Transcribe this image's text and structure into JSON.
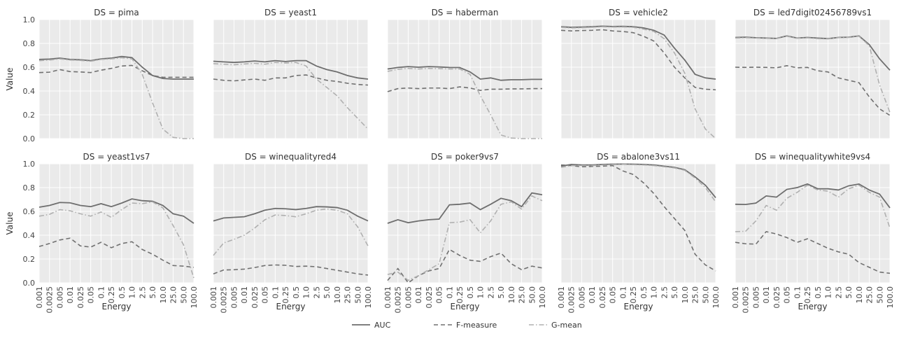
{
  "chart_data": {
    "type": "line",
    "layout": "facet-grid",
    "facet_prefix": "DS = ",
    "xlabel": "Energy",
    "ylabel": "Value",
    "ylim": [
      0,
      1
    ],
    "yticks": [
      "0.0",
      "0.2",
      "0.4",
      "0.6",
      "0.8",
      "1.0"
    ],
    "categories": [
      "0.001",
      "0.0025",
      "0.005",
      "0.01",
      "0.025",
      "0.05",
      "0.1",
      "0.25",
      "0.5",
      "1.0",
      "2.5",
      "5.0",
      "10.0",
      "25.0",
      "50.0",
      "100.0"
    ],
    "grid": true,
    "legend_position": "bottom-center",
    "legend": [
      {
        "name": "AUC",
        "style": "solid",
        "color": "#6e6e6e"
      },
      {
        "name": "F-measure",
        "style": "dashed",
        "color": "#707070"
      },
      {
        "name": "G-mean",
        "style": "dashdot",
        "color": "#b0b0b0"
      }
    ],
    "facets": [
      {
        "name": "pima",
        "series": [
          {
            "name": "AUC",
            "values": [
              0.665,
              0.668,
              0.676,
              0.665,
              0.662,
              0.655,
              0.67,
              0.676,
              0.69,
              0.68,
              0.6,
              0.53,
              0.505,
              0.5,
              0.5,
              0.5
            ]
          },
          {
            "name": "F-measure",
            "values": [
              0.555,
              0.558,
              0.58,
              0.563,
              0.56,
              0.555,
              0.575,
              0.59,
              0.61,
              0.615,
              0.57,
              0.53,
              0.515,
              0.515,
              0.515,
              0.515
            ]
          },
          {
            "name": "G-mean",
            "values": [
              0.655,
              0.66,
              0.67,
              0.66,
              0.657,
              0.65,
              0.665,
              0.67,
              0.68,
              0.67,
              0.54,
              0.3,
              0.08,
              0.01,
              0.0,
              0.0
            ]
          }
        ]
      },
      {
        "name": "yeast1",
        "series": [
          {
            "name": "AUC",
            "values": [
              0.65,
              0.645,
              0.64,
              0.645,
              0.652,
              0.645,
              0.655,
              0.648,
              0.655,
              0.655,
              0.61,
              0.58,
              0.56,
              0.53,
              0.51,
              0.5
            ]
          },
          {
            "name": "F-measure",
            "values": [
              0.5,
              0.49,
              0.485,
              0.493,
              0.5,
              0.49,
              0.51,
              0.51,
              0.53,
              0.535,
              0.51,
              0.49,
              0.48,
              0.465,
              0.455,
              0.45
            ]
          },
          {
            "name": "G-mean",
            "values": [
              0.63,
              0.625,
              0.62,
              0.627,
              0.633,
              0.625,
              0.64,
              0.635,
              0.64,
              0.61,
              0.5,
              0.43,
              0.36,
              0.26,
              0.17,
              0.08
            ]
          }
        ]
      },
      {
        "name": "haberman",
        "series": [
          {
            "name": "AUC",
            "values": [
              0.585,
              0.598,
              0.605,
              0.6,
              0.605,
              0.602,
              0.598,
              0.597,
              0.56,
              0.5,
              0.51,
              0.49,
              0.495,
              0.495,
              0.498,
              0.498
            ]
          },
          {
            "name": "F-measure",
            "values": [
              0.395,
              0.42,
              0.425,
              0.42,
              0.425,
              0.425,
              0.42,
              0.435,
              0.425,
              0.405,
              0.415,
              0.415,
              0.418,
              0.418,
              0.42,
              0.42
            ]
          },
          {
            "name": "G-mean",
            "values": [
              0.565,
              0.582,
              0.59,
              0.585,
              0.59,
              0.588,
              0.585,
              0.585,
              0.54,
              0.36,
              0.2,
              0.03,
              0.005,
              0.0,
              0.0,
              0.0
            ]
          }
        ]
      },
      {
        "name": "vehicle2",
        "series": [
          {
            "name": "AUC",
            "values": [
              0.94,
              0.935,
              0.937,
              0.94,
              0.945,
              0.942,
              0.943,
              0.94,
              0.93,
              0.91,
              0.87,
              0.76,
              0.66,
              0.54,
              0.51,
              0.5
            ]
          },
          {
            "name": "F-measure",
            "values": [
              0.91,
              0.905,
              0.908,
              0.91,
              0.915,
              0.905,
              0.9,
              0.89,
              0.86,
              0.82,
              0.72,
              0.6,
              0.51,
              0.43,
              0.415,
              0.41
            ]
          },
          {
            "name": "G-mean",
            "values": [
              0.935,
              0.93,
              0.932,
              0.935,
              0.94,
              0.937,
              0.938,
              0.935,
              0.92,
              0.9,
              0.84,
              0.72,
              0.55,
              0.25,
              0.08,
              0.0
            ]
          }
        ]
      },
      {
        "name": "led7digit02456789vs1",
        "series": [
          {
            "name": "AUC",
            "values": [
              0.85,
              0.852,
              0.848,
              0.845,
              0.842,
              0.863,
              0.845,
              0.85,
              0.845,
              0.84,
              0.85,
              0.852,
              0.863,
              0.79,
              0.67,
              0.575
            ]
          },
          {
            "name": "F-measure",
            "values": [
              0.6,
              0.598,
              0.6,
              0.598,
              0.595,
              0.613,
              0.595,
              0.598,
              0.57,
              0.56,
              0.51,
              0.49,
              0.47,
              0.35,
              0.25,
              0.195
            ]
          },
          {
            "name": "G-mean",
            "values": [
              0.845,
              0.848,
              0.845,
              0.842,
              0.84,
              0.86,
              0.843,
              0.847,
              0.84,
              0.838,
              0.848,
              0.85,
              0.86,
              0.78,
              0.45,
              0.22
            ]
          }
        ]
      },
      {
        "name": "yeast1vs7",
        "series": [
          {
            "name": "AUC",
            "values": [
              0.635,
              0.65,
              0.675,
              0.672,
              0.65,
              0.64,
              0.665,
              0.64,
              0.67,
              0.705,
              0.69,
              0.685,
              0.65,
              0.58,
              0.56,
              0.5
            ]
          },
          {
            "name": "F-measure",
            "values": [
              0.305,
              0.33,
              0.36,
              0.375,
              0.31,
              0.3,
              0.34,
              0.295,
              0.33,
              0.345,
              0.28,
              0.24,
              0.19,
              0.145,
              0.14,
              0.13
            ]
          },
          {
            "name": "G-mean",
            "values": [
              0.56,
              0.575,
              0.615,
              0.605,
              0.58,
              0.56,
              0.595,
              0.55,
              0.615,
              0.67,
              0.665,
              0.68,
              0.63,
              0.48,
              0.32,
              0.04
            ]
          }
        ]
      },
      {
        "name": "winequalityred4",
        "series": [
          {
            "name": "AUC",
            "values": [
              0.52,
              0.545,
              0.55,
              0.555,
              0.58,
              0.61,
              0.625,
              0.622,
              0.615,
              0.625,
              0.64,
              0.638,
              0.632,
              0.61,
              0.56,
              0.52
            ]
          },
          {
            "name": "F-measure",
            "values": [
              0.075,
              0.108,
              0.11,
              0.115,
              0.128,
              0.145,
              0.15,
              0.147,
              0.137,
              0.14,
              0.135,
              0.12,
              0.105,
              0.09,
              0.075,
              0.065
            ]
          },
          {
            "name": "G-mean",
            "values": [
              0.23,
              0.335,
              0.365,
              0.4,
              0.46,
              0.53,
              0.57,
              0.565,
              0.555,
              0.58,
              0.61,
              0.62,
              0.61,
              0.58,
              0.47,
              0.31
            ]
          }
        ]
      },
      {
        "name": "poker9vs7",
        "series": [
          {
            "name": "AUC",
            "values": [
              0.5,
              0.53,
              0.505,
              0.52,
              0.53,
              0.535,
              0.655,
              0.66,
              0.67,
              0.615,
              0.66,
              0.71,
              0.69,
              0.64,
              0.755,
              0.74
            ]
          },
          {
            "name": "F-measure",
            "values": [
              0.02,
              0.12,
              0.0,
              0.06,
              0.1,
              0.12,
              0.28,
              0.23,
              0.19,
              0.18,
              0.22,
              0.25,
              0.16,
              0.11,
              0.14,
              0.125
            ]
          },
          {
            "name": "G-mean",
            "values": [
              0.07,
              0.09,
              0.02,
              0.06,
              0.11,
              0.16,
              0.505,
              0.51,
              0.53,
              0.42,
              0.52,
              0.66,
              0.68,
              0.62,
              0.73,
              0.69
            ]
          }
        ]
      },
      {
        "name": "abalone3vs11",
        "series": [
          {
            "name": "AUC",
            "values": [
              0.98,
              0.995,
              0.99,
              0.99,
              0.995,
              0.997,
              0.998,
              0.997,
              0.995,
              0.99,
              0.98,
              0.97,
              0.95,
              0.89,
              0.82,
              0.715
            ]
          },
          {
            "name": "F-measure",
            "values": [
              0.99,
              0.985,
              0.975,
              0.978,
              0.98,
              0.985,
              0.94,
              0.91,
              0.84,
              0.75,
              0.64,
              0.54,
              0.44,
              0.24,
              0.15,
              0.1
            ]
          },
          {
            "name": "G-mean",
            "values": [
              0.97,
              0.985,
              0.985,
              0.985,
              0.99,
              0.993,
              0.995,
              0.993,
              0.99,
              0.985,
              0.975,
              0.965,
              0.945,
              0.88,
              0.8,
              0.68
            ]
          }
        ]
      },
      {
        "name": "winequalitywhite9vs4",
        "series": [
          {
            "name": "AUC",
            "values": [
              0.66,
              0.658,
              0.67,
              0.73,
              0.72,
              0.785,
              0.8,
              0.83,
              0.79,
              0.79,
              0.78,
              0.815,
              0.83,
              0.78,
              0.745,
              0.63
            ]
          },
          {
            "name": "F-measure",
            "values": [
              0.34,
              0.328,
              0.325,
              0.43,
              0.41,
              0.38,
              0.34,
              0.37,
              0.33,
              0.29,
              0.26,
              0.24,
              0.17,
              0.13,
              0.09,
              0.08
            ]
          },
          {
            "name": "G-mean",
            "values": [
              0.43,
              0.433,
              0.52,
              0.65,
              0.61,
              0.71,
              0.76,
              0.82,
              0.78,
              0.77,
              0.72,
              0.79,
              0.82,
              0.76,
              0.72,
              0.46
            ]
          }
        ]
      }
    ]
  }
}
